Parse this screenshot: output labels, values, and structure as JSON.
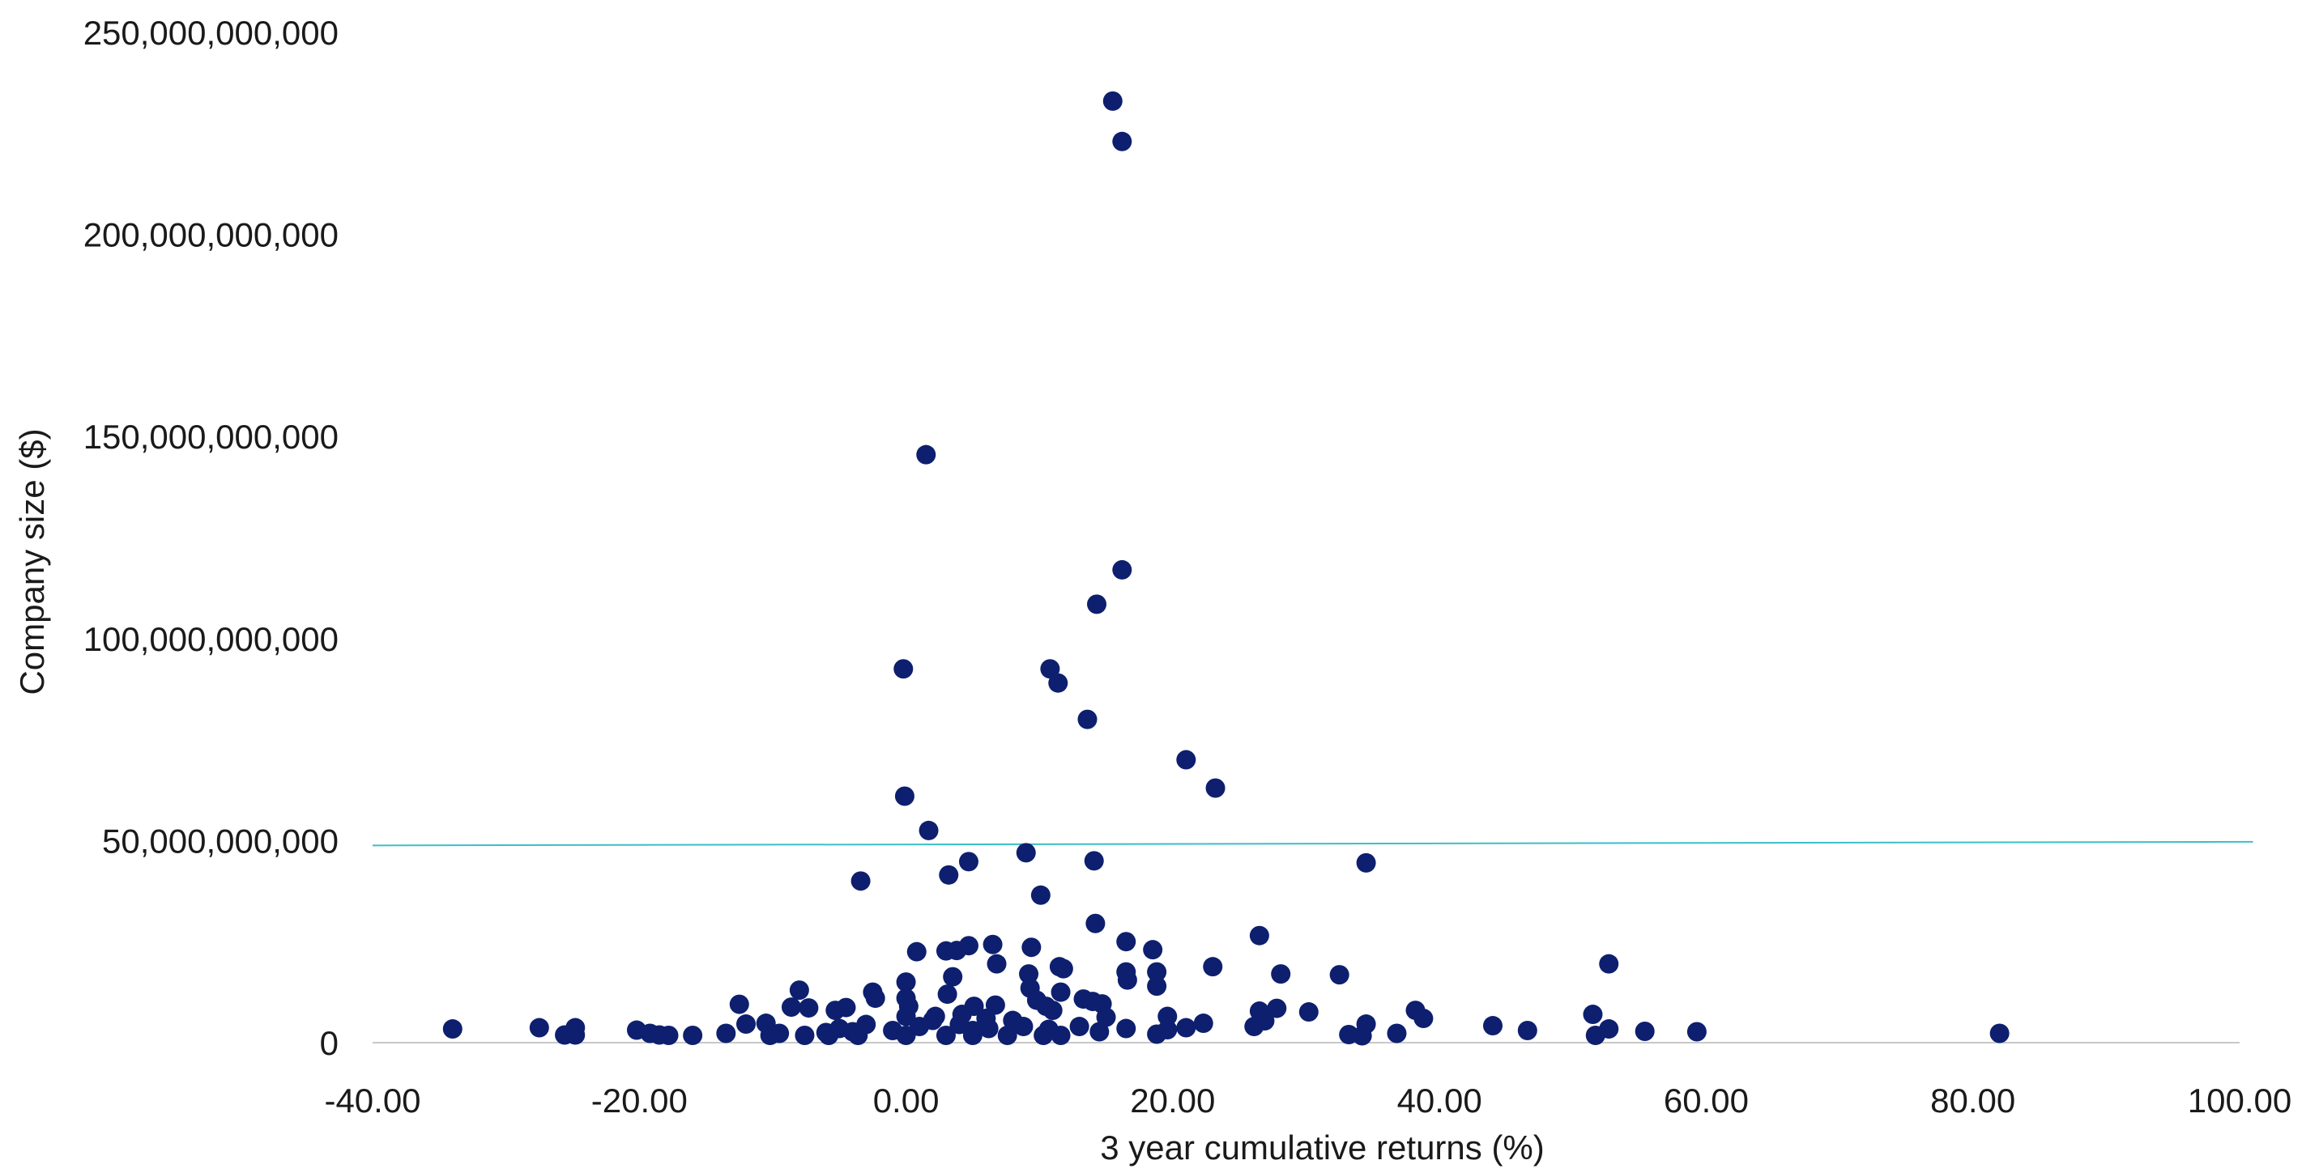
{
  "chart_data": {
    "type": "scatter",
    "title": "",
    "xlabel": "3 year cumulative returns (%)",
    "ylabel": "Company size ($)",
    "xlim": [
      -40,
      100
    ],
    "ylim": [
      0,
      250000000000
    ],
    "x_ticks": [
      -40,
      -20,
      0,
      20,
      40,
      60,
      80,
      100
    ],
    "x_tick_labels": [
      "-40.00",
      "-20.00",
      "0.00",
      "20.00",
      "40.00",
      "60.00",
      "80.00",
      "100.00"
    ],
    "y_ticks": [
      0,
      50000000000,
      100000000000,
      150000000000,
      200000000000,
      250000000000
    ],
    "y_tick_labels": [
      "0",
      "50,000,000,000",
      "100,000,000,000",
      "150,000,000,000",
      "200,000,000,000",
      "250,000,000,000"
    ],
    "grid": false,
    "legend": "none",
    "colors": {
      "points": "#0d1f6e",
      "reference_line": "#3bbfc7",
      "axis": "#c8c8c8"
    },
    "reference_line": {
      "x": [
        -40,
        101
      ],
      "y": [
        48800000000,
        49700000000
      ]
    },
    "series": [
      {
        "points": [
          [
            15.5,
            233000000000
          ],
          [
            16.2,
            223000000000
          ],
          [
            1.5,
            145500000000
          ],
          [
            16.2,
            117000000000
          ],
          [
            14.3,
            108500000000
          ],
          [
            10.8,
            92500000000
          ],
          [
            -0.2,
            92500000000
          ],
          [
            11.4,
            89000000000
          ],
          [
            13.6,
            80000000000
          ],
          [
            21.0,
            70000000000
          ],
          [
            23.2,
            63000000000
          ],
          [
            -0.1,
            61000000000
          ],
          [
            1.7,
            52500000000
          ],
          [
            9.0,
            47000000000
          ],
          [
            4.7,
            44800000000
          ],
          [
            14.1,
            45000000000
          ],
          [
            34.5,
            44500000000
          ],
          [
            3.2,
            41500000000
          ],
          [
            -3.4,
            40000000000
          ],
          [
            10.1,
            36500000000
          ],
          [
            14.2,
            29500000000
          ],
          [
            26.5,
            26500000000
          ],
          [
            16.5,
            25000000000
          ],
          [
            4.7,
            24000000000
          ],
          [
            6.5,
            24300000000
          ],
          [
            9.4,
            23600000000
          ],
          [
            18.5,
            23000000000
          ],
          [
            3.0,
            22700000000
          ],
          [
            3.8,
            22800000000
          ],
          [
            0.8,
            22500000000
          ],
          [
            6.8,
            19500000000
          ],
          [
            23.0,
            18800000000
          ],
          [
            52.7,
            19500000000
          ],
          [
            11.5,
            18800000000
          ],
          [
            11.8,
            18300000000
          ],
          [
            16.5,
            17500000000
          ],
          [
            28.1,
            17000000000
          ],
          [
            32.5,
            16800000000
          ],
          [
            9.2,
            17000000000
          ],
          [
            18.8,
            17500000000
          ],
          [
            3.5,
            16300000000
          ],
          [
            16.6,
            15500000000
          ],
          [
            0.0,
            15000000000
          ],
          [
            18.8,
            14000000000
          ],
          [
            9.3,
            13500000000
          ],
          [
            -8.0,
            13000000000
          ],
          [
            -2.5,
            12500000000
          ],
          [
            11.6,
            12500000000
          ],
          [
            3.1,
            12000000000
          ],
          [
            0.0,
            11000000000
          ],
          [
            -2.3,
            11000000000
          ],
          [
            13.3,
            10800000000
          ],
          [
            14.0,
            10200000000
          ],
          [
            9.8,
            10500000000
          ],
          [
            -12.5,
            9500000000
          ],
          [
            14.7,
            9600000000
          ],
          [
            10.5,
            9000000000
          ],
          [
            6.7,
            9300000000
          ],
          [
            0.2,
            9000000000
          ],
          [
            5.1,
            9000000000
          ],
          [
            -8.6,
            8800000000
          ],
          [
            -7.3,
            8600000000
          ],
          [
            -4.5,
            8700000000
          ],
          [
            27.8,
            8500000000
          ],
          [
            -5.3,
            8000000000
          ],
          [
            38.2,
            8000000000
          ],
          [
            11.0,
            8000000000
          ],
          [
            26.5,
            7800000000
          ],
          [
            30.2,
            7600000000
          ],
          [
            51.5,
            7000000000
          ],
          [
            19.6,
            6500000000
          ],
          [
            0.0,
            6500000000
          ],
          [
            15.0,
            6300000000
          ],
          [
            2.2,
            6500000000
          ],
          [
            38.8,
            6000000000
          ],
          [
            6.0,
            6000000000
          ],
          [
            8.0,
            5500000000
          ],
          [
            26.9,
            5400000000
          ],
          [
            22.3,
            4800000000
          ],
          [
            -10.5,
            4800000000
          ],
          [
            -12.0,
            4600000000
          ],
          [
            34.5,
            4600000000
          ],
          [
            4.0,
            4500000000
          ],
          [
            -3.0,
            4500000000
          ],
          [
            44.0,
            4200000000
          ],
          [
            26.1,
            4000000000
          ],
          [
            13.0,
            4000000000
          ],
          [
            -27.5,
            3700000000
          ],
          [
            -24.8,
            3700000000
          ],
          [
            21.0,
            3700000000
          ],
          [
            -34.0,
            3400000000
          ],
          [
            16.5,
            3500000000
          ],
          [
            -5.0,
            3500000000
          ],
          [
            10.7,
            3300000000
          ],
          [
            52.7,
            3400000000
          ],
          [
            -20.2,
            3100000000
          ],
          [
            46.6,
            3000000000
          ],
          [
            -1.0,
            3000000000
          ],
          [
            5.0,
            3000000000
          ],
          [
            19.6,
            3200000000
          ],
          [
            55.4,
            2800000000
          ],
          [
            59.3,
            2700000000
          ],
          [
            -4.0,
            2700000000
          ],
          [
            14.5,
            2700000000
          ],
          [
            -19.2,
            2300000000
          ],
          [
            -13.5,
            2300000000
          ],
          [
            -9.5,
            2300000000
          ],
          [
            -6.0,
            2500000000
          ],
          [
            36.8,
            2300000000
          ],
          [
            82.0,
            2300000000
          ],
          [
            18.8,
            2100000000
          ],
          [
            -25.6,
            1900000000
          ],
          [
            -24.8,
            1900000000
          ],
          [
            -18.5,
            1900000000
          ],
          [
            -17.8,
            1800000000
          ],
          [
            -16.0,
            1800000000
          ],
          [
            -10.2,
            1800000000
          ],
          [
            -7.6,
            1800000000
          ],
          [
            -5.8,
            1800000000
          ],
          [
            -3.6,
            1800000000
          ],
          [
            0.0,
            1800000000
          ],
          [
            3.0,
            1800000000
          ],
          [
            5.0,
            1800000000
          ],
          [
            7.6,
            1800000000
          ],
          [
            10.3,
            1800000000
          ],
          [
            11.6,
            1800000000
          ],
          [
            33.2,
            2000000000
          ],
          [
            34.2,
            1700000000
          ],
          [
            51.7,
            1800000000
          ],
          [
            1.0,
            4000000000
          ],
          [
            2.0,
            5500000000
          ],
          [
            4.2,
            7000000000
          ],
          [
            6.2,
            3500000000
          ],
          [
            8.8,
            4000000000
          ]
        ]
      }
    ]
  }
}
